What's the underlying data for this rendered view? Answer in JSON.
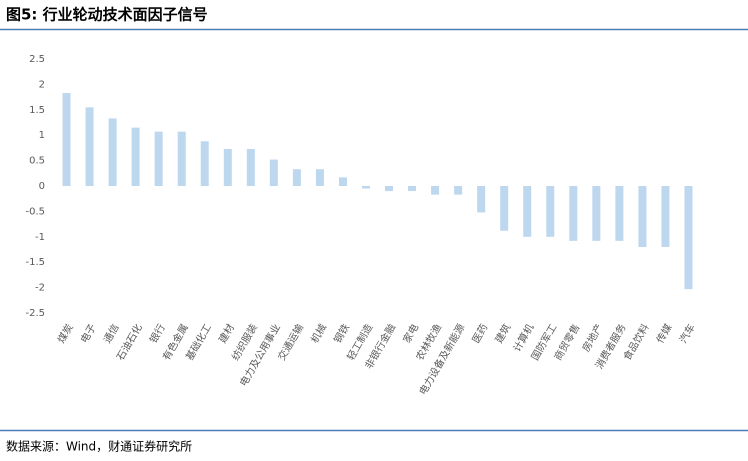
{
  "chart_data": {
    "type": "bar",
    "title": "图5: 行业轮动技术面因子信号",
    "categories": [
      "煤炭",
      "电子",
      "通信",
      "石油石化",
      "银行",
      "有色金属",
      "基础化工",
      "建材",
      "纺织服装",
      "电力及公用事业",
      "交通运输",
      "机械",
      "钢铁",
      "轻工制造",
      "非银行金融",
      "家电",
      "农林牧渔",
      "电力设备及新能源",
      "医药",
      "建筑",
      "计算机",
      "国防军工",
      "商贸零售",
      "房地产",
      "消费者服务",
      "食品饮料",
      "传媒",
      "汽车"
    ],
    "values": [
      1.83,
      1.55,
      1.33,
      1.15,
      1.07,
      1.07,
      0.88,
      0.73,
      0.73,
      0.52,
      0.33,
      0.33,
      0.17,
      -0.05,
      -0.1,
      -0.1,
      -0.17,
      -0.17,
      -0.52,
      -0.88,
      -1.0,
      -1.0,
      -1.08,
      -1.08,
      -1.08,
      -1.2,
      -1.2,
      -2.03
    ],
    "color": "#bdd7ee",
    "ylim": [
      -2.5,
      2.5
    ],
    "yticks": [
      -2.5,
      -2,
      -1.5,
      -1,
      -0.5,
      0,
      0.5,
      1,
      1.5,
      2,
      2.5
    ],
    "grid": false,
    "source": "数据来源：Wind，财通证券研究所"
  }
}
